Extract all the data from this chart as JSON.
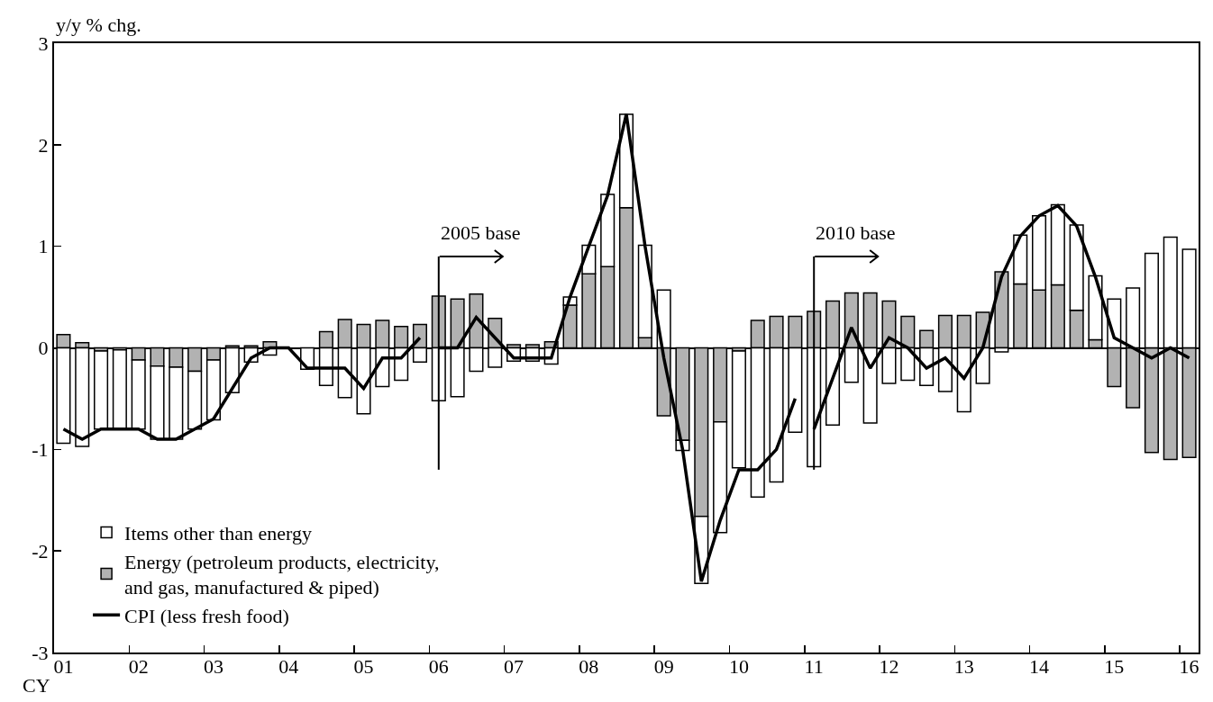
{
  "chart_data": {
    "type": "bar",
    "stacked": true,
    "ylabel": "y/y % chg.",
    "legend": "bottom left",
    "categories": [
      "01",
      null,
      null,
      null,
      "02",
      null,
      null,
      null,
      "03",
      null,
      null,
      null,
      "04",
      null,
      null,
      null,
      "05",
      null,
      null,
      null,
      "06",
      null,
      null,
      null,
      "07",
      null,
      null,
      null,
      "08",
      null,
      null,
      null,
      "09",
      null,
      null,
      null,
      "10",
      null,
      null,
      null,
      "11",
      null,
      null,
      null,
      "12",
      null,
      null,
      null,
      "13",
      null,
      null,
      null,
      "14",
      null,
      null,
      null,
      "15",
      null,
      null,
      null,
      "16"
    ],
    "ref_lines": [
      {
        "axis": "x",
        "value": "06",
        "label": "2005 base",
        "color": "#000000"
      },
      {
        "axis": "x",
        "value": "11",
        "label": "2010 base",
        "color": "#000000"
      }
    ],
    "ylim": [
      -3,
      3
    ],
    "yticks": [
      -3,
      -2,
      -1,
      0,
      1,
      2,
      3
    ],
    "series": [
      {
        "name": "Energy (petroleum products, electricity, and gas, manufactured & piped)",
        "color": "#b2b2b2",
        "values": [
          0.13,
          0.05,
          -0.03,
          -0.02,
          -0.12,
          -0.18,
          -0.19,
          -0.23,
          -0.12,
          0.02,
          0.02,
          0.06,
          null,
          null,
          0.16,
          0.28,
          0.23,
          0.27,
          0.21,
          0.23,
          0.51,
          0.48,
          0.53,
          0.29,
          0.03,
          0.03,
          0.06,
          0.42,
          0.73,
          0.8,
          1.38,
          0.1,
          -0.67,
          -0.91,
          -1.66,
          -0.73,
          -0.03,
          0.27,
          0.31,
          0.31,
          0.36,
          0.46,
          0.54,
          0.54,
          0.46,
          0.31,
          0.17,
          0.32,
          0.32,
          0.35,
          0.75,
          0.63,
          0.57,
          0.62,
          0.37,
          0.08,
          -0.38,
          -0.59,
          -1.03,
          -1.1,
          -1.08
        ]
      },
      {
        "name": "Items other than energy",
        "color": "#ffffff",
        "values": [
          -0.94,
          -0.97,
          -0.77,
          -0.78,
          -0.68,
          -0.72,
          -0.71,
          -0.57,
          -0.59,
          -0.44,
          -0.14,
          -0.07,
          null,
          -0.21,
          -0.37,
          -0.49,
          -0.65,
          -0.38,
          -0.32,
          -0.14,
          -0.52,
          -0.48,
          -0.23,
          -0.19,
          -0.13,
          -0.13,
          -0.16,
          0.08,
          0.28,
          0.71,
          0.92,
          0.91,
          0.57,
          -0.1,
          -0.66,
          -1.09,
          -1.15,
          -1.47,
          -1.32,
          -0.83,
          -1.17,
          -0.76,
          -0.34,
          -0.74,
          -0.35,
          -0.32,
          -0.37,
          -0.43,
          -0.63,
          -0.35,
          -0.04,
          0.48,
          0.73,
          0.79,
          0.84,
          0.63,
          0.48,
          0.59,
          0.93,
          1.09,
          0.97
        ]
      },
      {
        "name": "CPI (less fresh food)",
        "type": "line",
        "color": "#000000",
        "values": [
          -0.8,
          -0.9,
          -0.8,
          -0.8,
          -0.8,
          -0.9,
          -0.9,
          -0.8,
          -0.7,
          -0.4,
          -0.1,
          0,
          0,
          -0.2,
          -0.2,
          -0.2,
          -0.4,
          -0.1,
          -0.1,
          0.1,
          null,
          null,
          null,
          null,
          null,
          null,
          null,
          null,
          null,
          null,
          null,
          null,
          null,
          null,
          null,
          null,
          null,
          null,
          null,
          null,
          null,
          null,
          null,
          null,
          null,
          null,
          null,
          null,
          null,
          null,
          null,
          null,
          null,
          null,
          null,
          null,
          null,
          null,
          null,
          null,
          null
        ]
      },
      {
        "type": "line",
        "color": "#000000",
        "values": [
          null,
          null,
          null,
          null,
          null,
          null,
          null,
          null,
          null,
          null,
          null,
          null,
          null,
          null,
          null,
          null,
          null,
          null,
          null,
          null,
          0,
          0,
          0.3,
          0.1,
          -0.1,
          -0.1,
          -0.1,
          0.5,
          1,
          1.5,
          2.3,
          1,
          -0.1,
          -1,
          -2.3,
          -1.7,
          -1.2,
          -1.2,
          -1,
          -0.5,
          null,
          null,
          null,
          null,
          null,
          null,
          null,
          null,
          null,
          null,
          null,
          null,
          null,
          null,
          null,
          null,
          null,
          null,
          null,
          null,
          null
        ]
      },
      {
        "type": "line",
        "color": "#000000",
        "values": [
          null,
          null,
          null,
          null,
          null,
          null,
          null,
          null,
          null,
          null,
          null,
          null,
          null,
          null,
          null,
          null,
          null,
          null,
          null,
          null,
          null,
          null,
          null,
          null,
          null,
          null,
          null,
          null,
          null,
          null,
          null,
          null,
          null,
          null,
          null,
          null,
          null,
          null,
          null,
          null,
          -0.8,
          -0.3,
          0.2,
          -0.2,
          0.1,
          0,
          -0.2,
          -0.1,
          -0.3,
          0,
          0.7,
          1.1,
          1.3,
          1.4,
          1.2,
          0.7,
          0.1,
          0,
          -0.1,
          0,
          -0.1
        ]
      }
    ],
    "annotations": [
      "CY"
    ]
  }
}
